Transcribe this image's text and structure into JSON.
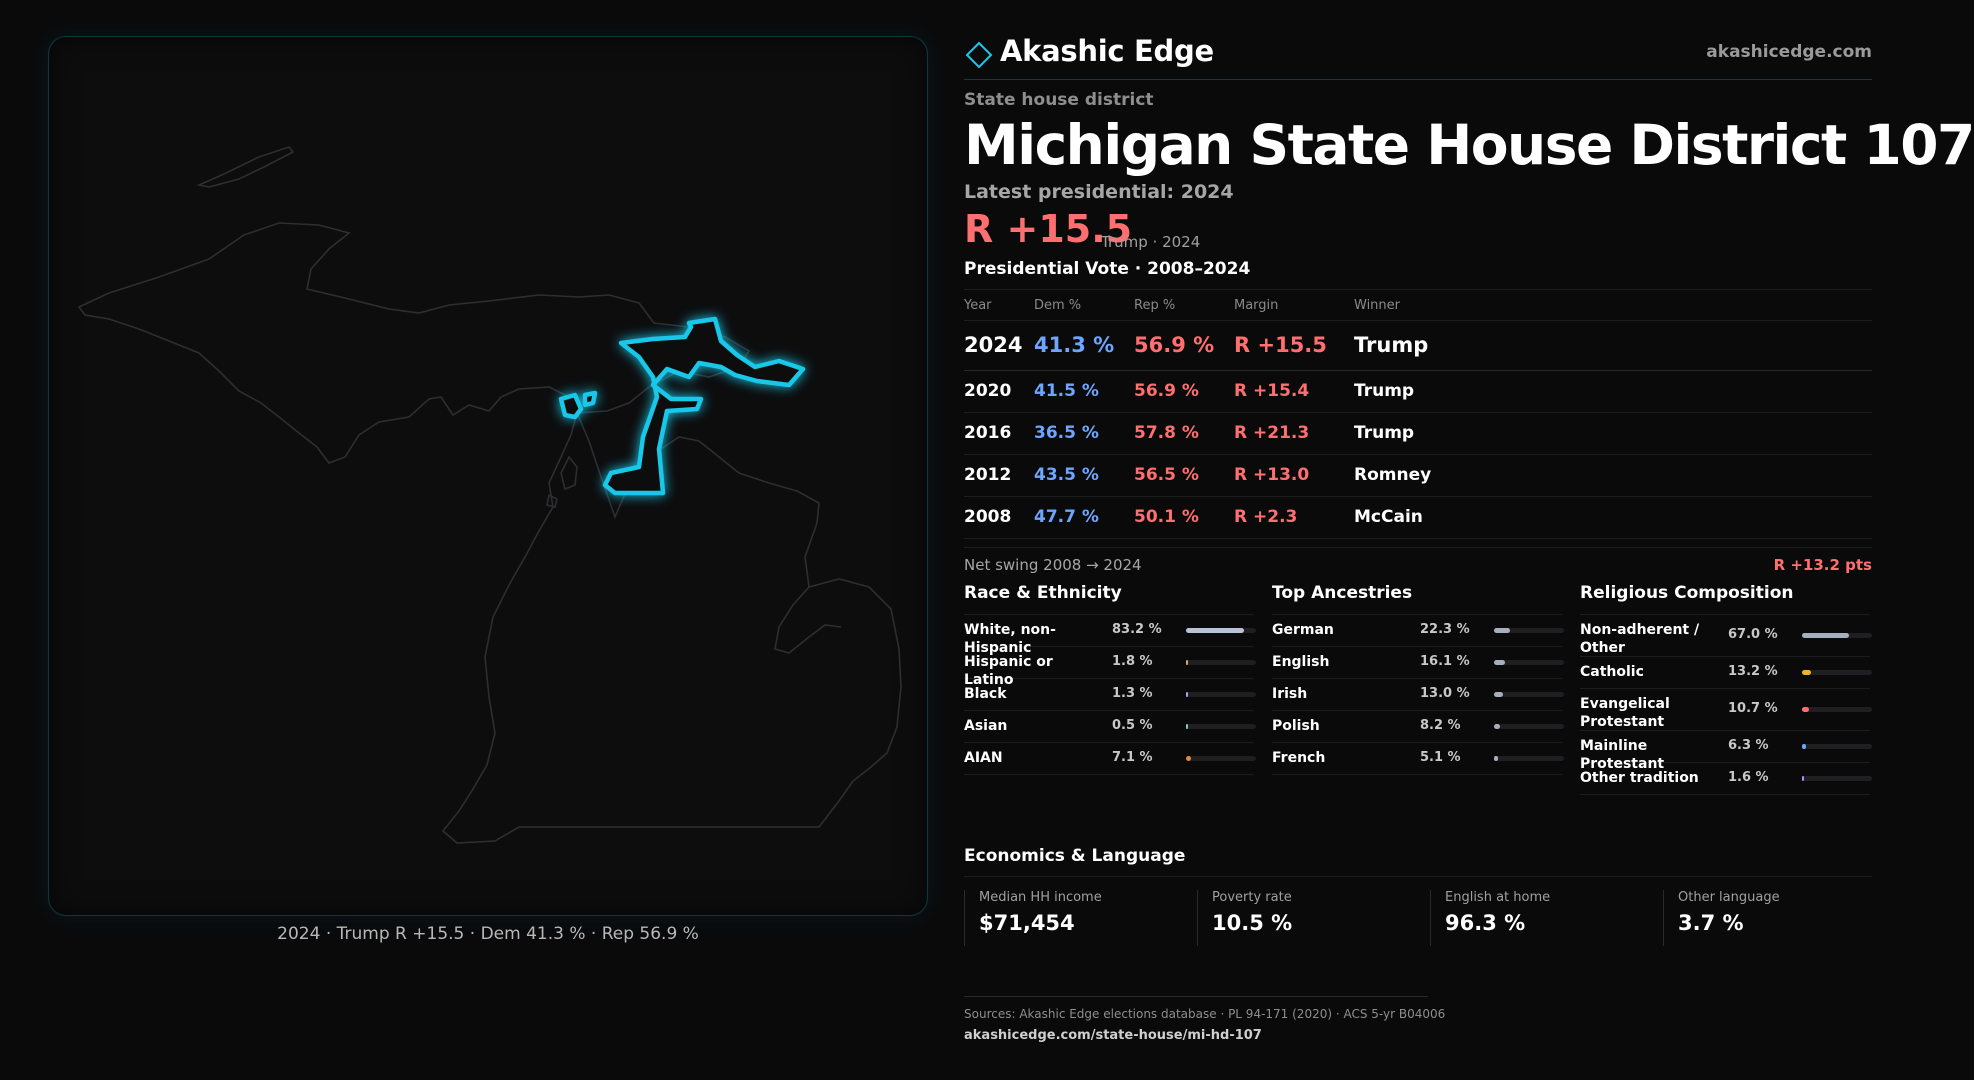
{
  "brand": {
    "name": "Akashic Edge",
    "url": "akashicedge.com"
  },
  "kicker": "State house district",
  "title": "Michigan State House District 107",
  "latest_label": "Latest presidential: 2024",
  "headline": {
    "margin": "R +15.5",
    "sub": "Trump · 2024"
  },
  "vote_section_title": "Presidential Vote · 2008–2024",
  "vote_table": {
    "headers": [
      "Year",
      "Dem %",
      "Rep %",
      "Margin",
      "Winner"
    ],
    "rows": [
      {
        "year": "2024",
        "dem": "41.3 %",
        "rep": "56.9 %",
        "margin": "R +15.5",
        "winner": "Trump"
      },
      {
        "year": "2020",
        "dem": "41.5 %",
        "rep": "56.9 %",
        "margin": "R +15.4",
        "winner": "Trump"
      },
      {
        "year": "2016",
        "dem": "36.5 %",
        "rep": "57.8 %",
        "margin": "R +21.3",
        "winner": "Trump"
      },
      {
        "year": "2012",
        "dem": "43.5 %",
        "rep": "56.5 %",
        "margin": "R +13.0",
        "winner": "Romney"
      },
      {
        "year": "2008",
        "dem": "47.7 %",
        "rep": "50.1 %",
        "margin": "R +2.3",
        "winner": "McCain"
      }
    ]
  },
  "swing": {
    "label": "Net swing 2008 → 2024",
    "value": "R +13.2 pts"
  },
  "race": {
    "title": "Race & Ethnicity",
    "rows": [
      {
        "label": "White, non-Hispanic",
        "pct": "83.2 %",
        "value": 83.2,
        "color": "#b8c4d4"
      },
      {
        "label": "Hispanic or Latino",
        "pct": "1.8 %",
        "value": 1.8,
        "color": "#e0a84e"
      },
      {
        "label": "Black",
        "pct": "1.3 %",
        "value": 1.3,
        "color": "#9aa6ff"
      },
      {
        "label": "Asian",
        "pct": "0.5 %",
        "value": 0.5,
        "color": "#6ad0c8"
      },
      {
        "label": "AIAN",
        "pct": "7.1 %",
        "value": 7.1,
        "color": "#e08a3c"
      }
    ]
  },
  "ancestry": {
    "title": "Top Ancestries",
    "rows": [
      {
        "label": "German",
        "pct": "22.3 %",
        "value": 22.3,
        "color": "#a6afbd"
      },
      {
        "label": "English",
        "pct": "16.1 %",
        "value": 16.1,
        "color": "#a6afbd"
      },
      {
        "label": "Irish",
        "pct": "13.0 %",
        "value": 13.0,
        "color": "#a6afbd"
      },
      {
        "label": "Polish",
        "pct": "8.2 %",
        "value": 8.2,
        "color": "#a6afbd"
      },
      {
        "label": "French",
        "pct": "5.1 %",
        "value": 5.1,
        "color": "#a6afbd"
      }
    ]
  },
  "religion": {
    "title": "Religious Composition",
    "rows": [
      {
        "label": "Non-adherent / Other",
        "pct": "67.0 %",
        "value": 67.0,
        "color": "#a6afbd"
      },
      {
        "label": "Catholic",
        "pct": "13.2 %",
        "value": 13.2,
        "color": "#f0b429"
      },
      {
        "label": "Evangelical Protestant",
        "pct": "10.7 %",
        "value": 10.7,
        "color": "#ff6f6f"
      },
      {
        "label": "Mainline Protestant",
        "pct": "6.3 %",
        "value": 6.3,
        "color": "#6ea6ff"
      },
      {
        "label": "Other tradition",
        "pct": "1.6 %",
        "value": 1.6,
        "color": "#b48cff"
      }
    ]
  },
  "economics": {
    "title": "Economics & Language",
    "items": [
      {
        "label": "Median HH income",
        "value": "$71,454"
      },
      {
        "label": "Poverty rate",
        "value": "10.5 %"
      },
      {
        "label": "English at home",
        "value": "96.3 %"
      },
      {
        "label": "Other language",
        "value": "3.7 %"
      }
    ]
  },
  "sources": {
    "text": "Sources: Akashic Edge elections database · PL 94-171 (2020) · ACS 5-yr B04006",
    "url": "akashicedge.com/state-house/mi-hd-107"
  },
  "map": {
    "caption": "2024 · Trump R +15.5 · Dem 41.3 % · Rep 56.9 %",
    "highlight_color": "#19c8e8",
    "outline_color": "#2e2e31"
  }
}
